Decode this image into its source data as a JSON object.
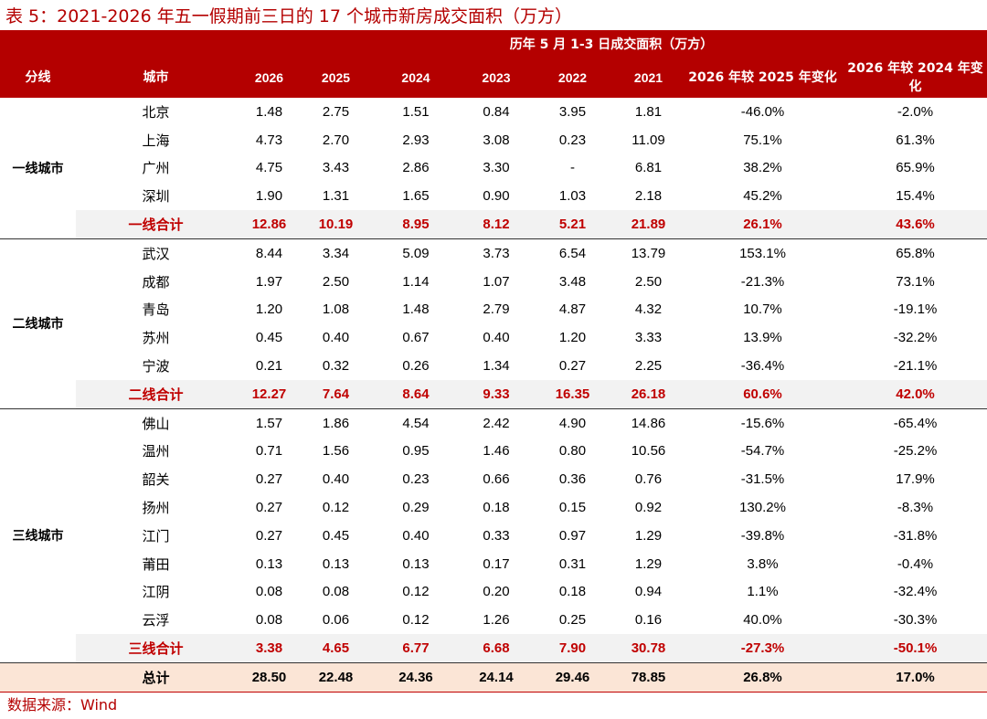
{
  "title": "表 5：2021-2026 年五一假期前三日的 17 个城市新房成交面积（万方）",
  "header": {
    "span_title": "历年 5 月 1-3 日成交面积（万方）",
    "col_group": "分线",
    "col_city": "城市",
    "years": [
      "2026",
      "2025",
      "2024",
      "2023",
      "2022",
      "2021"
    ],
    "chg1": "2026 年较 2025 年变化",
    "chg2": "2026 年较 2024 年变化"
  },
  "groups": [
    {
      "name": "一线城市",
      "rows": [
        {
          "city": "北京",
          "v": [
            "1.48",
            "2.75",
            "1.51",
            "0.84",
            "3.95",
            "1.81",
            "-46.0%",
            "-2.0%"
          ]
        },
        {
          "city": "上海",
          "v": [
            "4.73",
            "2.70",
            "2.93",
            "3.08",
            "0.23",
            "11.09",
            "75.1%",
            "61.3%"
          ]
        },
        {
          "city": "广州",
          "v": [
            "4.75",
            "3.43",
            "2.86",
            "3.30",
            "-",
            "6.81",
            "38.2%",
            "65.9%"
          ]
        },
        {
          "city": "深圳",
          "v": [
            "1.90",
            "1.31",
            "1.65",
            "0.90",
            "1.03",
            "2.18",
            "45.2%",
            "15.4%"
          ]
        }
      ],
      "subtotal": {
        "label": "一线合计",
        "v": [
          "12.86",
          "10.19",
          "8.95",
          "8.12",
          "5.21",
          "21.89",
          "26.1%",
          "43.6%"
        ]
      }
    },
    {
      "name": "二线城市",
      "rows": [
        {
          "city": "武汉",
          "v": [
            "8.44",
            "3.34",
            "5.09",
            "3.73",
            "6.54",
            "13.79",
            "153.1%",
            "65.8%"
          ]
        },
        {
          "city": "成都",
          "v": [
            "1.97",
            "2.50",
            "1.14",
            "1.07",
            "3.48",
            "2.50",
            "-21.3%",
            "73.1%"
          ]
        },
        {
          "city": "青岛",
          "v": [
            "1.20",
            "1.08",
            "1.48",
            "2.79",
            "4.87",
            "4.32",
            "10.7%",
            "-19.1%"
          ]
        },
        {
          "city": "苏州",
          "v": [
            "0.45",
            "0.40",
            "0.67",
            "0.40",
            "1.20",
            "3.33",
            "13.9%",
            "-32.2%"
          ]
        },
        {
          "city": "宁波",
          "v": [
            "0.21",
            "0.32",
            "0.26",
            "1.34",
            "0.27",
            "2.25",
            "-36.4%",
            "-21.1%"
          ]
        }
      ],
      "subtotal": {
        "label": "二线合计",
        "v": [
          "12.27",
          "7.64",
          "8.64",
          "9.33",
          "16.35",
          "26.18",
          "60.6%",
          "42.0%"
        ]
      }
    },
    {
      "name": "三线城市",
      "rows": [
        {
          "city": "佛山",
          "v": [
            "1.57",
            "1.86",
            "4.54",
            "2.42",
            "4.90",
            "14.86",
            "-15.6%",
            "-65.4%"
          ]
        },
        {
          "city": "温州",
          "v": [
            "0.71",
            "1.56",
            "0.95",
            "1.46",
            "0.80",
            "10.56",
            "-54.7%",
            "-25.2%"
          ]
        },
        {
          "city": "韶关",
          "v": [
            "0.27",
            "0.40",
            "0.23",
            "0.66",
            "0.36",
            "0.76",
            "-31.5%",
            "17.9%"
          ]
        },
        {
          "city": "扬州",
          "v": [
            "0.27",
            "0.12",
            "0.29",
            "0.18",
            "0.15",
            "0.92",
            "130.2%",
            "-8.3%"
          ]
        },
        {
          "city": "江门",
          "v": [
            "0.27",
            "0.45",
            "0.40",
            "0.33",
            "0.97",
            "1.29",
            "-39.8%",
            "-31.8%"
          ]
        },
        {
          "city": "莆田",
          "v": [
            "0.13",
            "0.13",
            "0.13",
            "0.17",
            "0.31",
            "1.29",
            "3.8%",
            "-0.4%"
          ]
        },
        {
          "city": "江阴",
          "v": [
            "0.08",
            "0.08",
            "0.12",
            "0.20",
            "0.18",
            "0.94",
            "1.1%",
            "-32.4%"
          ]
        },
        {
          "city": "云浮",
          "v": [
            "0.08",
            "0.06",
            "0.12",
            "1.26",
            "0.25",
            "0.16",
            "40.0%",
            "-30.3%"
          ]
        }
      ],
      "subtotal": {
        "label": "三线合计",
        "v": [
          "3.38",
          "4.65",
          "6.77",
          "6.68",
          "7.90",
          "30.78",
          "-27.3%",
          "-50.1%"
        ]
      }
    }
  ],
  "total": {
    "label": "总计",
    "v": [
      "28.50",
      "22.48",
      "24.36",
      "24.14",
      "29.46",
      "78.85",
      "26.8%",
      "17.0%"
    ]
  },
  "source": "数据来源：Wind",
  "colors": {
    "header_bg": "#b40000",
    "subtotal_text": "#c00000",
    "subtotal_bg": "#f2f2f2",
    "total_bg": "#fbe5d6"
  }
}
